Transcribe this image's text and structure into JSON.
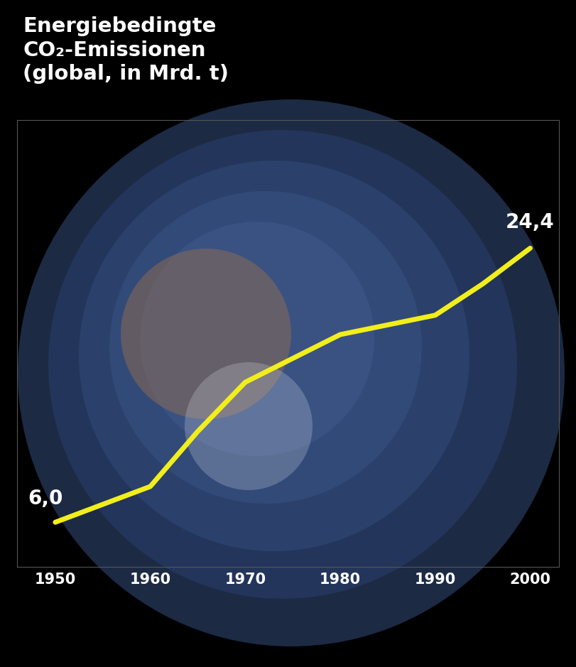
{
  "chart_data": {
    "type": "line",
    "title": "Energiebedingte\nCO₂-Emissionen\n(global, in Mrd. t)",
    "x": [
      1950,
      1960,
      1965,
      1970,
      1980,
      1990,
      1995,
      2000
    ],
    "values": [
      6.0,
      8.4,
      12.1,
      15.4,
      18.6,
      19.9,
      22.0,
      24.4
    ],
    "color": "#f2ee1c",
    "xlim": [
      1946,
      2003
    ],
    "xticks": [
      1950,
      1960,
      1970,
      1980,
      1990,
      2000
    ],
    "ylim": [
      3,
      33
    ],
    "yticks": [],
    "grid": false,
    "tick_labels": "x",
    "annotations": [
      {
        "x": 1950,
        "text": "6,0"
      },
      {
        "x": 2000,
        "text": "24,4"
      }
    ]
  }
}
